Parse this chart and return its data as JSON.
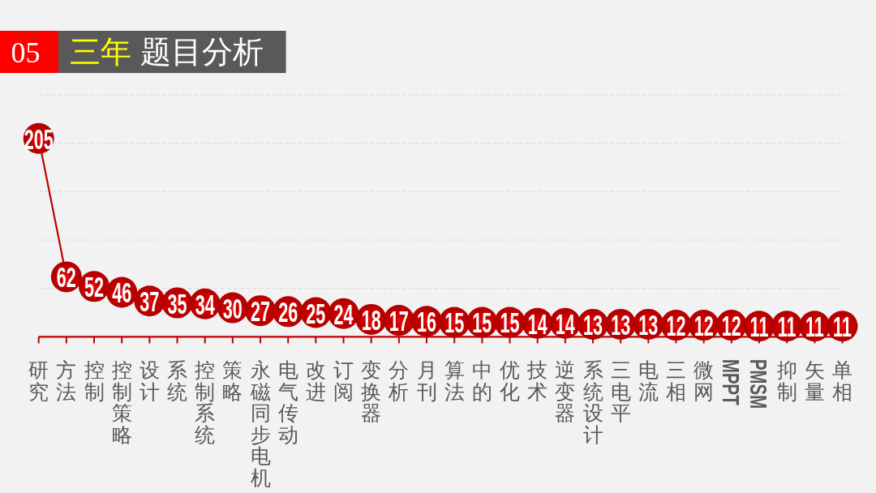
{
  "chart_data": {
    "type": "line",
    "title": "05 三年 题目分析",
    "categories": [
      "研究",
      "方法",
      "控制",
      "控制策略",
      "设计",
      "系统",
      "控制系统",
      "策略",
      "永磁同步电机",
      "电气传动",
      "改进",
      "订阅",
      "变换器",
      "分析",
      "月刊",
      "算法",
      "中的",
      "优化",
      "技术",
      "逆变器",
      "系统设计",
      "三电平",
      "电流",
      "三相",
      "微网",
      "MPPT",
      "PMSM",
      "抑制",
      "矢量",
      "单相"
    ],
    "values": [
      205,
      62,
      52,
      46,
      37,
      35,
      34,
      30,
      27,
      26,
      25,
      24,
      18,
      17,
      16,
      15,
      15,
      15,
      14,
      14,
      13,
      13,
      13,
      12,
      12,
      12,
      11,
      11,
      11,
      11
    ],
    "color": "#c00000",
    "marker": "circle",
    "line_style": "solid",
    "data_labels": true,
    "ylim": [
      0,
      250
    ],
    "yticks": [
      {
        "value": 50,
        "label": null
      },
      {
        "value": 100,
        "label": null
      },
      {
        "value": 150,
        "label": null
      },
      {
        "value": 200,
        "label": null
      },
      {
        "value": 250,
        "label": null
      }
    ],
    "grid": "y",
    "tick_labels": "x"
  }
}
